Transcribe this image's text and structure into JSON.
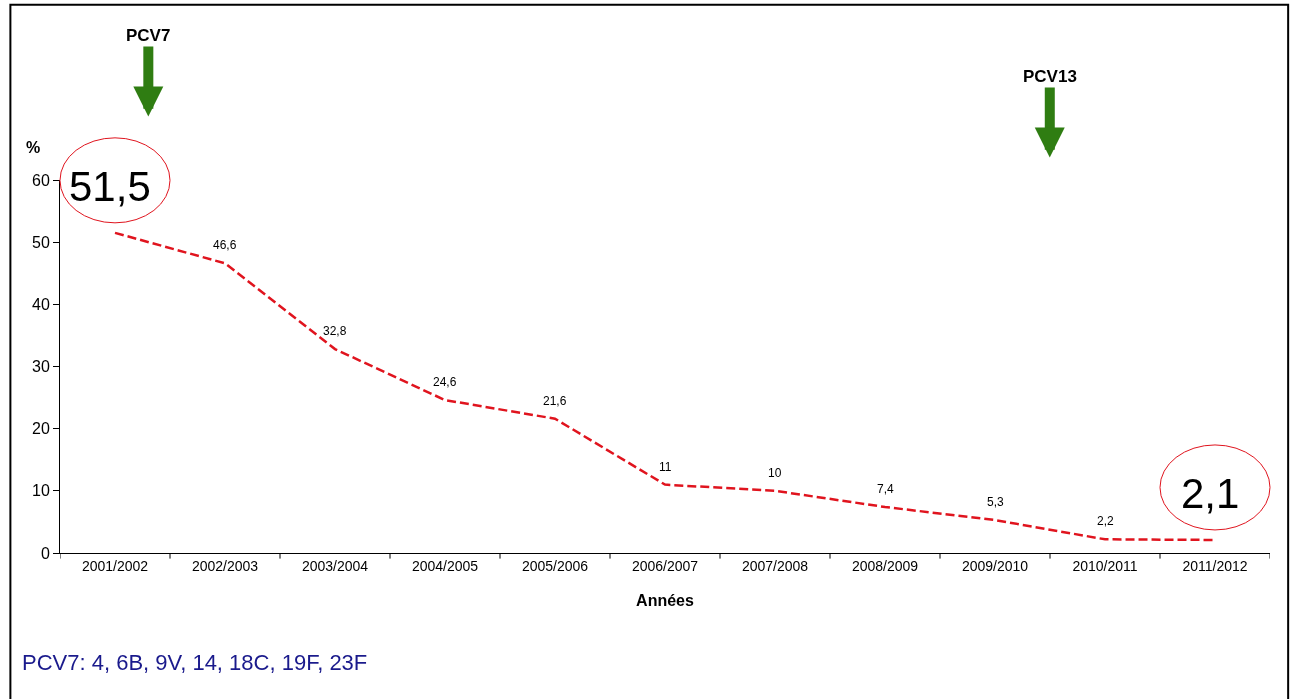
{
  "chart_data": {
    "type": "line",
    "categories": [
      "2001/2002",
      "2002/2003",
      "2003/2004",
      "2004/2005",
      "2005/2006",
      "2006/2007",
      "2007/2008",
      "2008/2009",
      "2009/2010",
      "2010/2011",
      "2011/2012"
    ],
    "series": [
      {
        "color": "#e0141e",
        "values": [
          51.5,
          46.6,
          32.8,
          24.6,
          21.6,
          11,
          10,
          7.4,
          5.3,
          2.2,
          2.1
        ],
        "value_labels": [
          "51,5",
          "46,6",
          "32,8",
          "24,6",
          "21,6",
          "11",
          "10",
          "7,4",
          "5,3",
          "2,2",
          "2,1"
        ]
      }
    ],
    "xlabel": "Années",
    "ylabel": "%",
    "ylim": [
      0,
      60
    ],
    "yticks": [
      0,
      10,
      20,
      30,
      40,
      50,
      60
    ],
    "marker": "none",
    "line_style": "dashed",
    "annotations": [
      "PCV7",
      "PCV13",
      "PCV7: 4, 6B, 9V, 14, 18C, 19F, 23F"
    ]
  }
}
